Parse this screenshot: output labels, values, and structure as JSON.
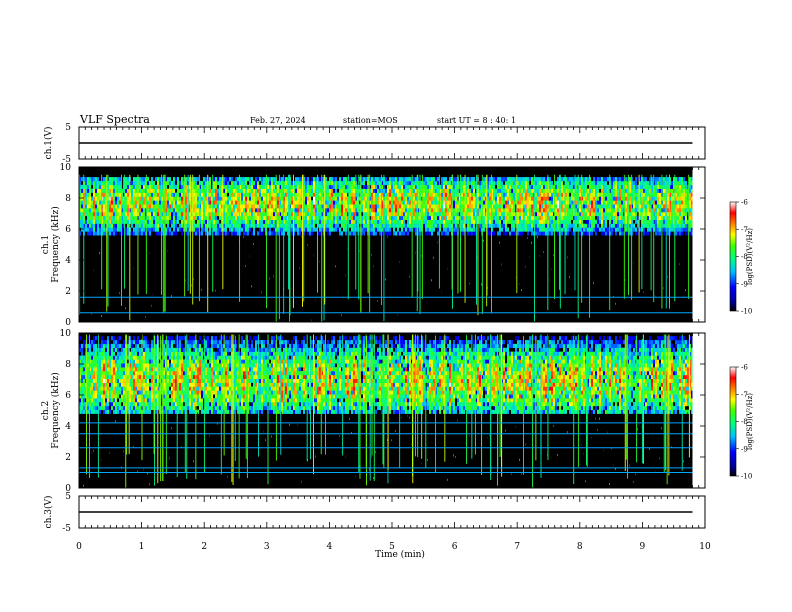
{
  "header": {
    "title": "VLF Spectra",
    "date": "Feb. 27, 2024",
    "station": "station=MOS",
    "start": "start  UT =   8 : 40: 1"
  },
  "chart_data": [
    {
      "type": "line",
      "name": "ch1-waveform",
      "ylabel": "ch.1(V)",
      "ylim": [
        -5,
        5
      ],
      "yticks": [
        "5",
        "-5"
      ],
      "x": [
        0,
        9.8
      ],
      "y": [
        0,
        0
      ]
    },
    {
      "type": "heatmap",
      "name": "ch1-spectrogram",
      "ylabel_lines": [
        "ch.1",
        "Frequency (kHz)"
      ],
      "ylim": [
        0,
        10
      ],
      "yticks": [
        "0",
        "2",
        "4",
        "6",
        "8",
        "10"
      ],
      "data_end_min": 9.8,
      "band_khz": [
        5.6,
        9.2
      ],
      "band_peak_khz": 7.5,
      "line_khz": [
        1.6,
        0.6
      ],
      "colorbar": {
        "label": "log(PSD)(V²/Hz)",
        "min": -10,
        "max": -6,
        "ticks": [
          "-6",
          "-7",
          "-8",
          "-9",
          "-10"
        ]
      }
    },
    {
      "type": "heatmap",
      "name": "ch2-spectrogram",
      "ylabel_lines": [
        "ch.2",
        "Frequency (kHz)"
      ],
      "ylim": [
        0,
        10
      ],
      "yticks": [
        "0",
        "2",
        "4",
        "6",
        "8",
        "10"
      ],
      "data_end_min": 9.8,
      "band_khz": [
        4.8,
        9.6
      ],
      "band_peak_khz": 6.8,
      "line_khz": [
        1.3,
        1.0,
        2.6,
        3.5,
        4.2
      ],
      "colorbar": {
        "label": "log(PSD)(V²/Hz)",
        "min": -10,
        "max": -6,
        "ticks": [
          "-6",
          "-7",
          "-8",
          "-9",
          "-10"
        ]
      }
    },
    {
      "type": "line",
      "name": "ch3-waveform",
      "ylabel": "ch.3(V)",
      "ylim": [
        -5,
        5
      ],
      "yticks": [
        "5",
        "-5"
      ],
      "x": [
        0,
        9.8
      ],
      "y": [
        0,
        0
      ]
    }
  ],
  "xaxis": {
    "label": "Time  (min)",
    "ticks": [
      "0",
      "1",
      "2",
      "3",
      "4",
      "5",
      "6",
      "7",
      "8",
      "9",
      "10"
    ],
    "range": [
      0,
      10
    ]
  }
}
